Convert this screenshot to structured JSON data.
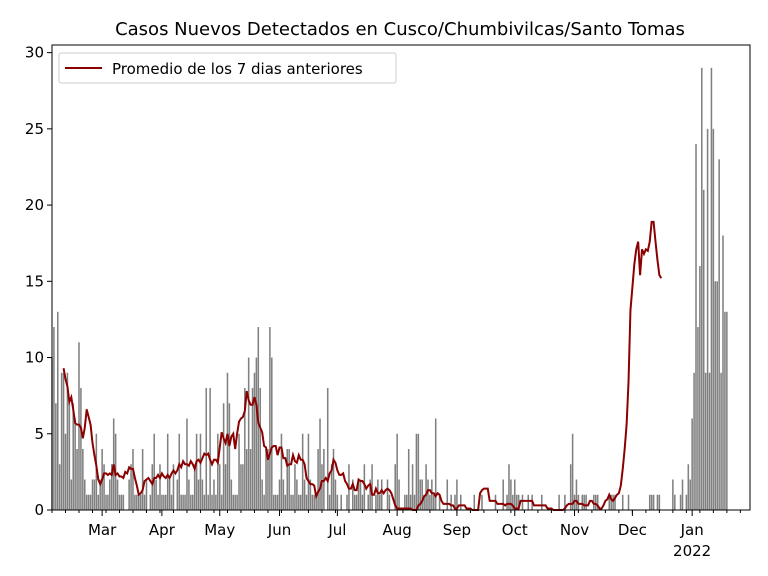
{
  "chart_data": {
    "type": "bar",
    "title": "Casos Nuevos Detectados en Cusco/Chumbivilcas/Santo Tomas",
    "xlabel": "",
    "ylabel": "",
    "x_start": "2021-02-03",
    "x_end": "2022-01-31",
    "ylim": [
      0,
      30.5
    ],
    "y_ticks": [
      0,
      5,
      10,
      15,
      20,
      25,
      30
    ],
    "x_ticks": [
      {
        "date": "2021-03-01",
        "label": "Mar"
      },
      {
        "date": "2021-04-01",
        "label": "Apr"
      },
      {
        "date": "2021-05-01",
        "label": "May"
      },
      {
        "date": "2021-06-01",
        "label": "Jun"
      },
      {
        "date": "2021-07-01",
        "label": "Jul"
      },
      {
        "date": "2021-08-01",
        "label": "Aug"
      },
      {
        "date": "2021-09-01",
        "label": "Sep"
      },
      {
        "date": "2021-10-01",
        "label": "Oct"
      },
      {
        "date": "2021-11-01",
        "label": "Nov"
      },
      {
        "date": "2021-12-01",
        "label": "Dec"
      },
      {
        "date": "2022-01-01",
        "label": "Jan",
        "sublabel": "2022"
      }
    ],
    "bar_color": "#808080",
    "line_color": "#8b0000",
    "legend": {
      "label": "Promedio de los 7 dias anteriores",
      "position": "upper-left"
    },
    "series": [
      {
        "type": "bar",
        "start": "2021-02-03",
        "values": [
          10,
          12,
          7,
          13,
          3,
          9,
          9,
          5,
          9,
          7,
          2,
          7,
          6,
          4,
          11,
          8,
          4,
          2,
          1,
          1,
          1,
          2,
          2,
          5,
          1,
          2,
          4,
          3,
          1,
          1,
          2,
          3,
          6,
          5,
          2,
          1,
          1,
          1,
          0,
          0,
          2,
          3,
          4,
          1,
          1,
          1,
          1,
          4,
          1,
          2,
          0,
          1,
          3,
          5,
          2,
          1,
          3,
          1,
          1,
          1,
          5,
          2,
          1,
          3,
          0,
          2,
          5,
          1,
          1,
          1,
          6,
          2,
          1,
          1,
          3,
          5,
          2,
          5,
          2,
          1,
          8,
          1,
          8,
          1,
          2,
          1,
          5,
          3,
          1,
          7,
          3,
          9,
          7,
          2,
          1,
          1,
          1,
          5,
          3,
          3,
          8,
          4,
          10,
          4,
          8,
          9,
          10,
          12,
          8,
          2,
          1,
          4,
          4,
          12,
          10,
          1,
          1,
          1,
          2,
          5,
          2,
          1,
          4,
          4,
          1,
          1,
          3,
          2,
          1,
          1,
          5,
          2,
          1,
          5,
          2,
          1,
          1,
          1,
          4,
          6,
          3,
          4,
          0,
          8,
          1,
          3,
          4,
          2,
          1,
          0,
          1,
          0,
          0,
          1,
          3,
          0,
          2,
          1,
          1,
          2,
          2,
          1,
          3,
          0,
          1,
          2,
          3,
          0,
          1,
          2,
          1,
          2,
          0,
          0,
          2,
          1,
          0,
          0,
          3,
          5,
          2,
          0,
          0,
          1,
          1,
          4,
          1,
          3,
          1,
          5,
          5,
          2,
          2,
          1,
          3,
          2,
          1,
          2,
          1,
          6,
          0,
          1,
          0,
          0,
          0,
          2,
          0,
          1,
          0,
          1,
          2,
          0,
          1,
          0,
          0,
          0,
          0,
          0,
          0,
          1,
          0,
          0,
          0,
          1,
          0,
          0,
          0,
          0,
          0,
          0,
          1,
          0,
          0,
          0,
          2,
          0,
          1,
          3,
          2,
          1,
          2,
          1,
          1,
          0,
          1,
          0,
          0,
          1,
          0,
          1,
          0,
          0,
          0,
          0,
          1,
          0,
          0,
          0,
          0,
          0,
          0,
          0,
          0,
          1,
          0,
          0,
          1,
          0,
          0,
          3,
          5,
          1,
          2,
          1,
          0,
          1,
          1,
          1,
          0,
          0,
          0,
          1,
          1,
          1,
          0,
          0,
          0,
          0,
          0,
          1,
          1,
          1,
          1,
          0,
          0,
          0,
          1,
          0,
          0,
          1,
          0,
          0,
          0,
          0,
          0,
          0,
          0,
          0,
          0,
          0,
          1,
          1,
          1,
          0,
          1,
          1,
          0,
          0,
          0,
          0,
          0,
          0,
          2,
          1,
          0,
          0,
          1,
          2,
          0,
          1,
          3,
          2,
          6,
          9,
          24,
          12,
          16,
          29,
          21,
          9,
          25,
          9,
          29,
          25,
          15,
          15,
          23,
          9,
          18,
          13,
          13
        ]
      },
      {
        "type": "line",
        "name": "Promedio de los 7 dias anteriores",
        "start": "2021-02-09",
        "values": [
          9.3,
          8.6,
          8.1,
          7.1,
          7.4,
          6.6,
          5.7,
          5.6,
          5.6,
          5.4,
          4.7,
          5.4,
          6.6,
          6.1,
          5.6,
          4.4,
          3.6,
          2.9,
          2.0,
          1.7,
          2.0,
          2.4,
          2.4,
          2.3,
          2.4,
          2.3,
          3.0,
          2.3,
          2.4,
          2.2,
          2.2,
          2.1,
          2.5,
          2.4,
          2.8,
          2.7,
          2.7,
          2.1,
          1.6,
          1.0,
          1.1,
          1.3,
          1.9,
          2.0,
          2.1,
          1.9,
          1.7,
          2.1,
          2.1,
          2.3,
          2.1,
          2.4,
          2.2,
          2.1,
          2.3,
          2.1,
          2.4,
          2.6,
          2.4,
          2.6,
          3.0,
          2.8,
          3.2,
          3.0,
          3.0,
          2.9,
          3.2,
          3.0,
          2.7,
          3.2,
          3.3,
          3.1,
          3.4,
          3.7,
          3.6,
          3.7,
          3.3,
          3.0,
          3.3,
          3.3,
          3.1,
          4.1,
          5.1,
          4.7,
          4.4,
          5.0,
          4.2,
          4.8,
          5.0,
          4.0,
          5.0,
          5.8,
          6.0,
          6.1,
          6.5,
          7.8,
          7.2,
          6.9,
          6.9,
          7.4,
          6.9,
          5.7,
          5.4,
          5.1,
          4.2,
          4.1,
          3.3,
          3.7,
          4.1,
          4.2,
          4.2,
          3.6,
          4.1,
          4.1,
          3.4,
          3.4,
          2.9,
          3.0,
          3.0,
          3.6,
          3.2,
          3.1,
          3.6,
          3.3,
          3.3,
          3.0,
          2.1,
          1.9,
          1.7,
          1.7,
          1.6,
          0.9,
          1.2,
          1.4,
          1.9,
          1.9,
          2.1,
          1.9,
          2.4,
          2.6,
          3.3,
          3.1,
          2.6,
          2.3,
          2.3,
          2.4,
          1.9,
          1.7,
          1.4,
          1.4,
          1.7,
          1.3,
          1.3,
          2.0,
          1.9,
          1.9,
          1.7,
          1.4,
          1.6,
          1.7,
          1.0,
          1.0,
          1.4,
          1.1,
          1.1,
          1.3,
          1.1,
          1.3,
          1.4,
          1.3,
          1.1,
          0.7,
          0.3,
          0.1,
          0.1,
          0.1,
          0.1,
          0.1,
          0.1,
          0.1,
          0.1,
          0.0,
          0.0,
          0.0,
          0.3,
          0.4,
          0.6,
          0.9,
          1.0,
          1.3,
          1.3,
          1.1,
          1.1,
          0.9,
          1.1,
          1.0,
          0.6,
          0.4,
          0.4,
          0.4,
          0.4,
          0.3,
          0.3,
          0.1,
          0.1,
          0.3,
          0.3,
          0.3,
          0.3,
          0.1,
          0.1,
          0.1,
          0.0,
          0.0,
          0.0,
          0.0,
          1.1,
          1.3,
          1.4,
          1.4,
          1.4,
          0.6,
          0.6,
          0.6,
          0.6,
          0.4,
          0.4,
          0.4,
          0.4,
          0.3,
          0.4,
          0.4,
          0.4,
          0.3,
          0.1,
          0.1,
          0.1,
          0.6,
          0.6,
          0.6,
          0.6,
          0.6,
          0.6,
          0.6,
          0.3,
          0.3,
          0.3,
          0.3,
          0.3,
          0.3,
          0.3,
          0.1,
          0.1,
          0.1,
          0.0,
          0.0,
          0.0,
          0.0,
          0.0,
          0.0,
          0.1,
          0.3,
          0.4,
          0.4,
          0.4,
          0.6,
          0.6,
          0.4,
          0.4,
          0.4,
          0.3,
          0.3,
          0.3,
          0.6,
          0.6,
          0.4,
          0.4,
          0.3,
          0.1,
          0.1,
          0.3,
          0.6,
          0.7,
          1.0,
          0.7,
          0.6,
          0.8,
          1.0,
          1.1,
          1.6,
          2.7,
          4.0,
          5.6,
          8.4,
          13.1,
          14.6,
          16.1,
          17.1,
          17.6,
          15.4,
          17.1,
          16.8,
          17.1,
          17.0,
          17.6,
          18.9,
          18.9,
          17.6,
          16.4,
          15.4,
          15.2
        ]
      }
    ]
  }
}
